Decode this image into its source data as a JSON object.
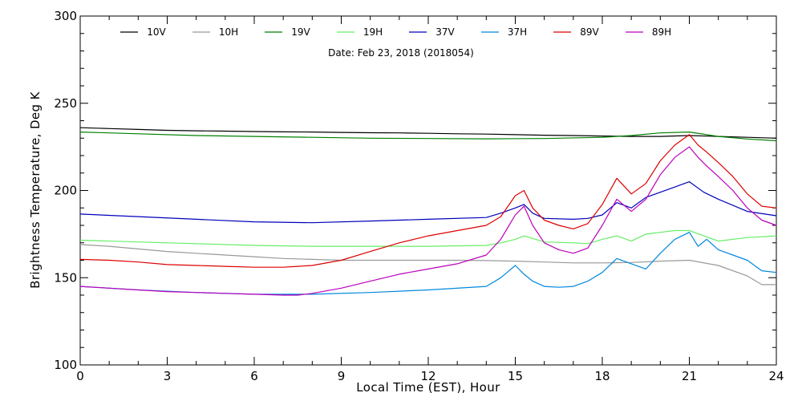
{
  "chart_data": {
    "type": "line",
    "title": "",
    "annotation": "Date: Feb 23, 2018 (2018054)",
    "xlabel": "Local Time (EST), Hour",
    "ylabel": "Brightness Temperature, Deg K",
    "xlim": [
      0,
      24
    ],
    "ylim": [
      100,
      300
    ],
    "xticks": [
      0,
      3,
      6,
      9,
      12,
      15,
      18,
      21,
      24
    ],
    "yticks": [
      100,
      150,
      200,
      250,
      300
    ],
    "grid": false,
    "legend_position": "top",
    "series": [
      {
        "name": "10V",
        "color": "#000000",
        "x": [
          0,
          1,
          2,
          3,
          4,
          5,
          6,
          7,
          8,
          9,
          10,
          11,
          12,
          13,
          14,
          15,
          16,
          17,
          18,
          19,
          20,
          21,
          22,
          23,
          24
        ],
        "y": [
          236,
          235.5,
          235,
          234.5,
          234.2,
          234,
          233.8,
          233.6,
          233.5,
          233.3,
          233.1,
          233,
          232.8,
          232.5,
          232.3,
          232,
          231.7,
          231.5,
          231.2,
          231,
          231,
          231.5,
          231,
          230.5,
          230
        ]
      },
      {
        "name": "10H",
        "color": "#999999",
        "x": [
          0,
          1,
          2,
          3,
          4,
          5,
          6,
          7,
          8,
          9,
          10,
          11,
          12,
          13,
          14,
          15,
          16,
          17,
          18,
          19,
          20,
          21,
          22,
          23,
          23.5,
          24
        ],
        "y": [
          169,
          168,
          166.5,
          165,
          164,
          163,
          162,
          161,
          160.5,
          160,
          160,
          160,
          160,
          160,
          159.8,
          159.5,
          159,
          158.5,
          158.5,
          158.7,
          159.5,
          160,
          157,
          151,
          146,
          146
        ]
      },
      {
        "name": "19V",
        "color": "#008000",
        "x": [
          0,
          2,
          4,
          6,
          8,
          10,
          12,
          14,
          16,
          18,
          19,
          20,
          21,
          22,
          23,
          24
        ],
        "y": [
          233.5,
          232.5,
          231.5,
          231,
          230.5,
          230,
          229.8,
          229.6,
          229.8,
          230.5,
          231.5,
          233,
          233.5,
          231,
          229.5,
          228.5
        ]
      },
      {
        "name": "19H",
        "color": "#66ee66",
        "x": [
          0,
          2,
          4,
          6,
          8,
          10,
          12,
          14,
          14.5,
          15,
          15.3,
          16,
          17,
          17.5,
          18,
          18.5,
          19,
          19.5,
          20,
          20.5,
          21,
          21.5,
          22,
          23,
          24
        ],
        "y": [
          171.5,
          170.5,
          169.5,
          168.5,
          168,
          168,
          168,
          168.5,
          170,
          172,
          174,
          170.5,
          170,
          169.5,
          172,
          174,
          171,
          175,
          176,
          177,
          177,
          174,
          171,
          173,
          174
        ]
      },
      {
        "name": "37V",
        "color": "#0000bb",
        "x": [
          0,
          2,
          4,
          6,
          8,
          10,
          12,
          14,
          14.5,
          15,
          15.3,
          15.6,
          16,
          17,
          17.5,
          18,
          18.5,
          19,
          19.5,
          20,
          20.5,
          21,
          21.5,
          22,
          23,
          24
        ],
        "y": [
          186.5,
          185,
          183.5,
          182,
          181.5,
          182.5,
          183.5,
          184.5,
          187,
          190,
          192,
          187,
          184,
          183.5,
          184,
          186,
          193,
          190,
          196,
          199,
          202,
          205,
          199,
          195,
          188,
          185.5
        ]
      },
      {
        "name": "37H",
        "color": "#0088dd",
        "x": [
          0,
          2,
          4,
          6,
          7,
          8,
          10,
          12,
          14,
          14.5,
          15,
          15.3,
          15.6,
          16,
          16.5,
          17,
          17.5,
          18,
          18.5,
          19,
          19.5,
          20,
          20.5,
          21,
          21.3,
          21.6,
          22,
          22.5,
          23,
          23.5,
          24
        ],
        "y": [
          145,
          143,
          141.5,
          140.5,
          140.5,
          140.5,
          141.5,
          143,
          145,
          150,
          157,
          152,
          148,
          145,
          144.5,
          145,
          148,
          153,
          161,
          158,
          155,
          164,
          172,
          176,
          168,
          172,
          166,
          163,
          160,
          154,
          153
        ]
      },
      {
        "name": "89V",
        "color": "#dd0000",
        "x": [
          0,
          1,
          2,
          3,
          4,
          5,
          6,
          7,
          7.5,
          8,
          9,
          10,
          11,
          12,
          13,
          14,
          14.5,
          15,
          15.3,
          15.6,
          16,
          16.5,
          17,
          17.5,
          18,
          18.5,
          19,
          19.5,
          20,
          20.5,
          21,
          21.3,
          21.6,
          22,
          22.5,
          23,
          23.5,
          24
        ],
        "y": [
          160.5,
          160,
          159,
          157.5,
          157,
          156.5,
          156,
          156,
          156.5,
          157,
          160,
          165,
          170,
          174,
          177,
          180,
          185,
          197,
          200,
          190,
          183,
          180,
          178,
          181,
          192,
          207,
          198,
          204,
          217,
          226,
          232,
          226,
          222,
          216,
          208,
          198,
          191,
          190
        ]
      },
      {
        "name": "89H",
        "color": "#bb00bb",
        "x": [
          0,
          1,
          2,
          3,
          4,
          5,
          6,
          7,
          7.5,
          8,
          9,
          10,
          11,
          12,
          13,
          14,
          14.5,
          15,
          15.3,
          15.6,
          16,
          16.5,
          17,
          17.5,
          18,
          18.5,
          19,
          19.5,
          20,
          20.5,
          21,
          21.3,
          21.6,
          22,
          22.5,
          23,
          23.5,
          24
        ],
        "y": [
          145,
          144,
          143,
          142,
          141.5,
          141,
          140.5,
          140,
          140,
          141,
          144,
          148,
          152,
          155,
          158,
          163,
          172,
          186,
          191,
          180,
          170,
          166,
          164,
          167,
          180,
          195,
          188,
          195,
          209,
          219,
          225,
          219,
          214,
          208,
          200,
          190,
          183,
          180
        ]
      }
    ]
  }
}
